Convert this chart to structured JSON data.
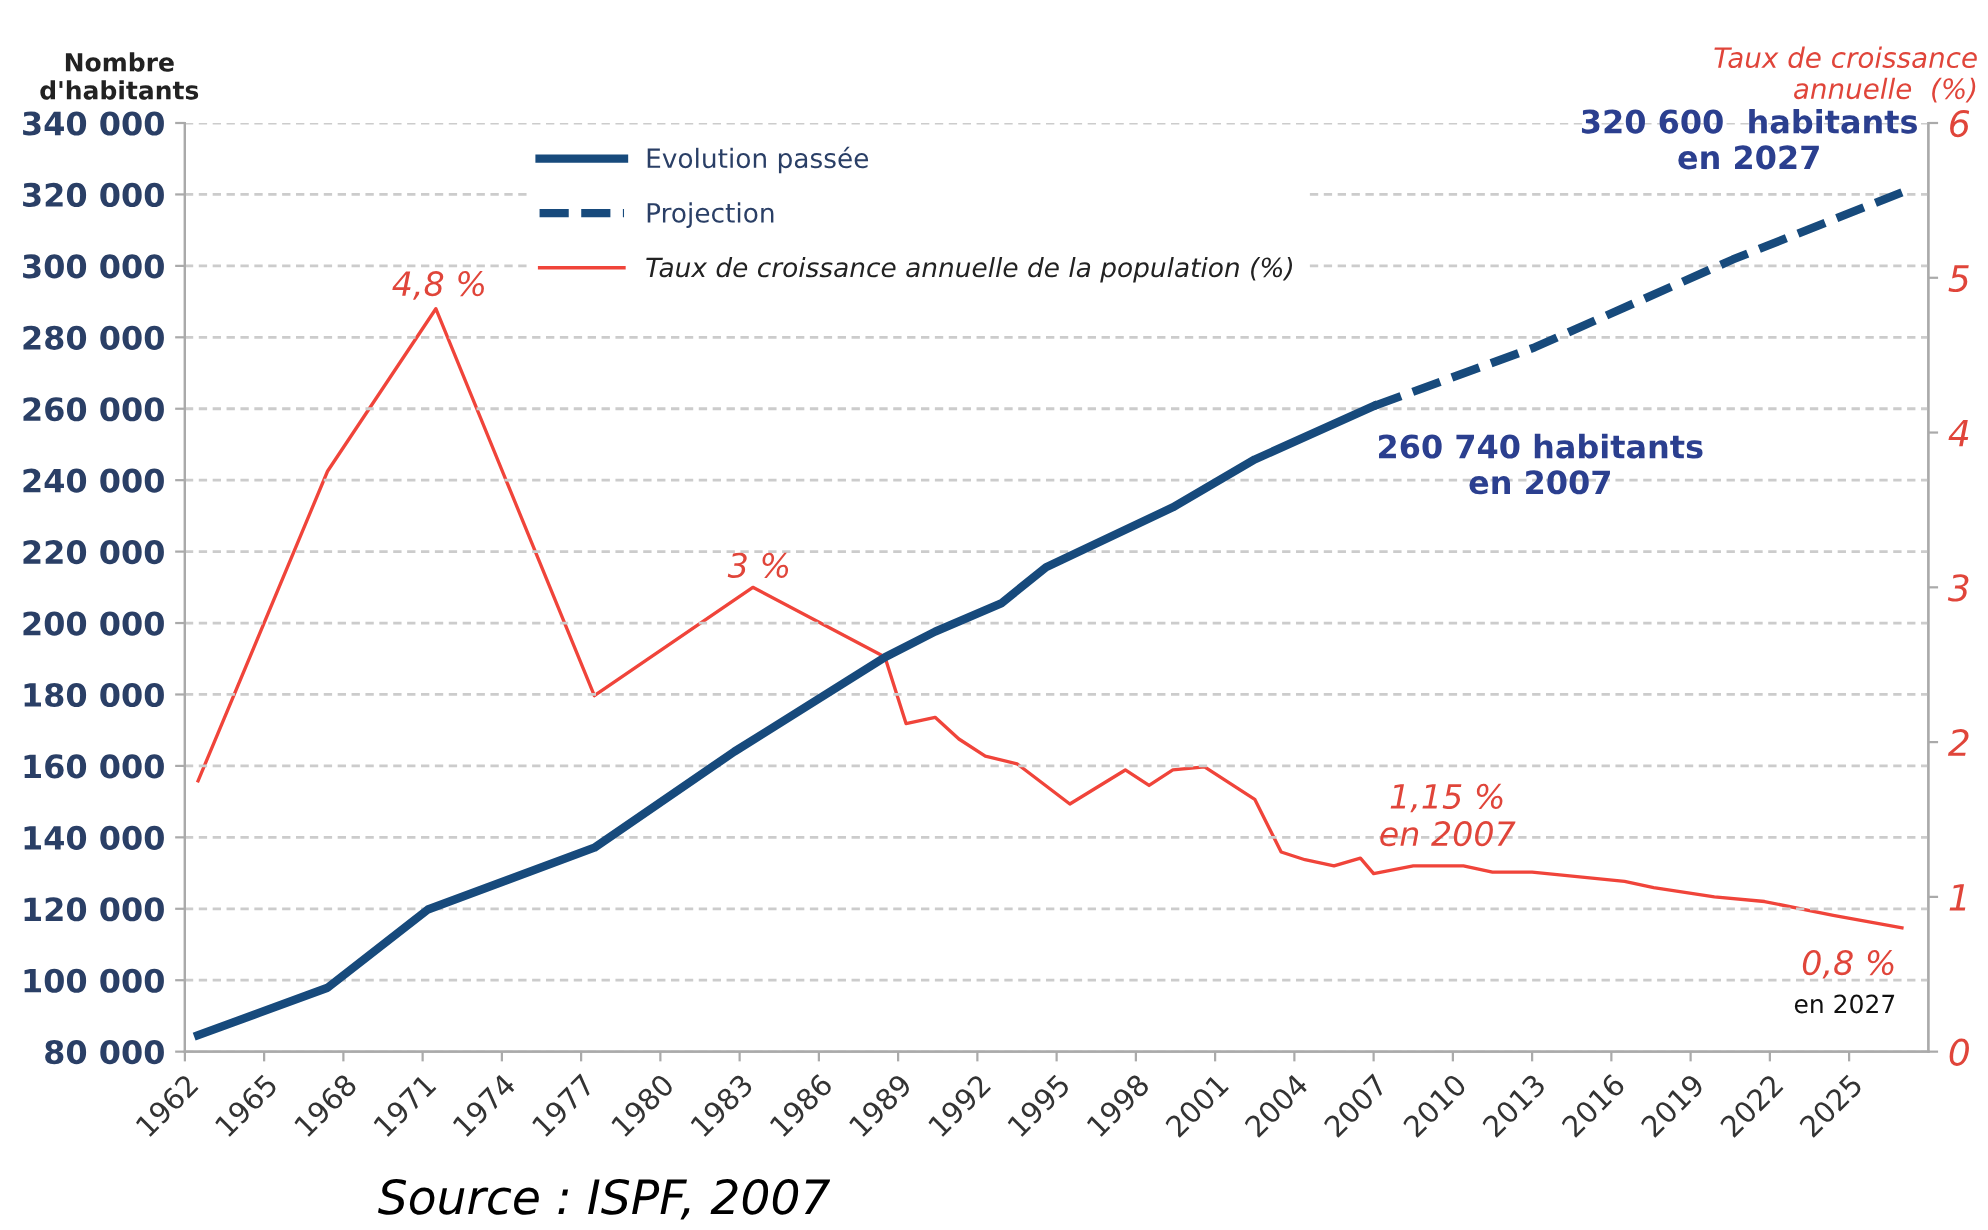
{
  "chart_data": {
    "type": "line",
    "ylabel": "Nombre\nd'habitants",
    "y2label": "Taux de croissance\nannuelle  (%)",
    "xlim": [
      1962,
      2028
    ],
    "xticks": [
      1962,
      1965,
      1968,
      1971,
      1974,
      1977,
      1980,
      1983,
      1986,
      1989,
      1992,
      1995,
      1998,
      2001,
      2004,
      2007,
      2010,
      2013,
      2016,
      2019,
      2022,
      2025
    ],
    "ylim": [
      80000,
      340000
    ],
    "yticks": [
      {
        "value": 80000,
        "label": "80 000"
      },
      {
        "value": 100000,
        "label": "100 000"
      },
      {
        "value": 120000,
        "label": "120 000"
      },
      {
        "value": 140000,
        "label": "140 000"
      },
      {
        "value": 160000,
        "label": "160 000"
      },
      {
        "value": 180000,
        "label": "180 000"
      },
      {
        "value": 200000,
        "label": "200 000"
      },
      {
        "value": 220000,
        "label": "220 000"
      },
      {
        "value": 240000,
        "label": "240 000"
      },
      {
        "value": 260000,
        "label": "260 000"
      },
      {
        "value": 280000,
        "label": "280 000"
      },
      {
        "value": 300000,
        "label": "300 000"
      },
      {
        "value": 320000,
        "label": "320 000"
      },
      {
        "value": 340000,
        "label": "340 000"
      }
    ],
    "y2lim": [
      0,
      6
    ],
    "y2ticks": [
      0,
      1,
      2,
      3,
      4,
      5,
      6
    ],
    "grid": "y",
    "legend": "top",
    "marker": "none",
    "series": [
      {
        "name": "Evolution passée",
        "color": "#174a7c",
        "line_style": "solid",
        "x": [
          1962.5,
          1967.4,
          1971.2,
          1977.5,
          1982.8,
          1988.5,
          1990.4,
          1992.9,
          1994.6,
          1999.4,
          2002.5,
          2007
        ],
        "values": [
          84600,
          97900,
          119800,
          137100,
          164000,
          190400,
          197600,
          205500,
          215600,
          232400,
          245800,
          260740
        ]
      },
      {
        "name": "Projection",
        "color": "#174a7c",
        "line_style": "dashed",
        "x": [
          2007,
          2013.1,
          2020.6,
          2027
        ],
        "values": [
          260740,
          277200,
          301800,
          320600
        ]
      },
      {
        "name": "Taux de croissance annuelle de la population (%)",
        "color": "#f0443a",
        "line_style": "solid",
        "axis": "y2",
        "x": [
          1962.5,
          1967.4,
          1971.5,
          1977.5,
          1983.5,
          1988.5,
          1989.3,
          1990.4,
          1991.3,
          1992.3,
          1993.5,
          1995.5,
          1997.6,
          1998.5,
          1999.4,
          2000.6,
          2002.5,
          2003.5,
          2004.4,
          2005.5,
          2006.5,
          2007,
          2008.5,
          2010.4,
          2011.5,
          2013,
          2016.5,
          2017.6,
          2019.9,
          2021.8,
          2024.4,
          2027
        ],
        "values": [
          1.75,
          3.75,
          4.8,
          2.3,
          3,
          2.55,
          2.12,
          2.16,
          2.02,
          1.91,
          1.86,
          1.6,
          1.82,
          1.72,
          1.82,
          1.84,
          1.63,
          1.29,
          1.24,
          1.2,
          1.25,
          1.15,
          1.2,
          1.2,
          1.16,
          1.16,
          1.1,
          1.06,
          1.0,
          0.97,
          0.88,
          0.8
        ]
      }
    ],
    "annotations": [
      "4,8 %",
      "3 %",
      "1,15 %\nen 2007",
      "0,8 %",
      "en 2027",
      {
        "text": "320 600  habitants\nen 2027",
        "x": 2027,
        "y": 320600
      },
      {
        "text": "260 740 habitants\nen 2007",
        "x": 2007,
        "y": 260740
      },
      "Source : ISPF, 2007"
    ]
  }
}
